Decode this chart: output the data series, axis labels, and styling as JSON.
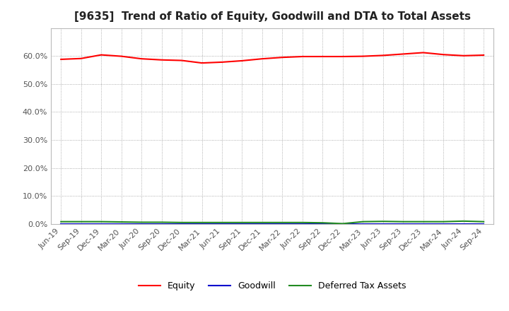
{
  "title": "[9635]  Trend of Ratio of Equity, Goodwill and DTA to Total Assets",
  "x_labels": [
    "Jun-19",
    "Sep-19",
    "Dec-19",
    "Mar-20",
    "Jun-20",
    "Sep-20",
    "Dec-20",
    "Mar-21",
    "Jun-21",
    "Sep-21",
    "Dec-21",
    "Mar-22",
    "Jun-22",
    "Sep-22",
    "Dec-22",
    "Mar-23",
    "Jun-23",
    "Sep-23",
    "Dec-23",
    "Mar-24",
    "Jun-24",
    "Sep-24"
  ],
  "equity": [
    0.588,
    0.591,
    0.604,
    0.599,
    0.59,
    0.586,
    0.584,
    0.575,
    0.578,
    0.583,
    0.59,
    0.595,
    0.598,
    0.598,
    0.598,
    0.599,
    0.602,
    0.607,
    0.612,
    0.605,
    0.601,
    0.603
  ],
  "goodwill": [
    0.0,
    0.0,
    0.0,
    0.0,
    0.0,
    0.0,
    0.0,
    0.0,
    0.0,
    0.0,
    0.0,
    0.0,
    0.0,
    0.0,
    0.0,
    0.0,
    0.0,
    0.0,
    0.0,
    0.0,
    0.0,
    0.0
  ],
  "dta": [
    0.008,
    0.008,
    0.008,
    0.007,
    0.006,
    0.006,
    0.005,
    0.005,
    0.005,
    0.005,
    0.005,
    0.005,
    0.005,
    0.004,
    0.001,
    0.008,
    0.009,
    0.008,
    0.008,
    0.008,
    0.01,
    0.008
  ],
  "equity_color": "#ff0000",
  "goodwill_color": "#0000cd",
  "dta_color": "#228b22",
  "bg_color": "#ffffff",
  "plot_bg_color": "#ffffff",
  "grid_color": "#999999",
  "ylim": [
    0.0,
    0.7
  ],
  "yticks": [
    0.0,
    0.1,
    0.2,
    0.3,
    0.4,
    0.5,
    0.6
  ],
  "legend_labels": [
    "Equity",
    "Goodwill",
    "Deferred Tax Assets"
  ],
  "title_fontsize": 11,
  "tick_fontsize": 8,
  "legend_fontsize": 9
}
